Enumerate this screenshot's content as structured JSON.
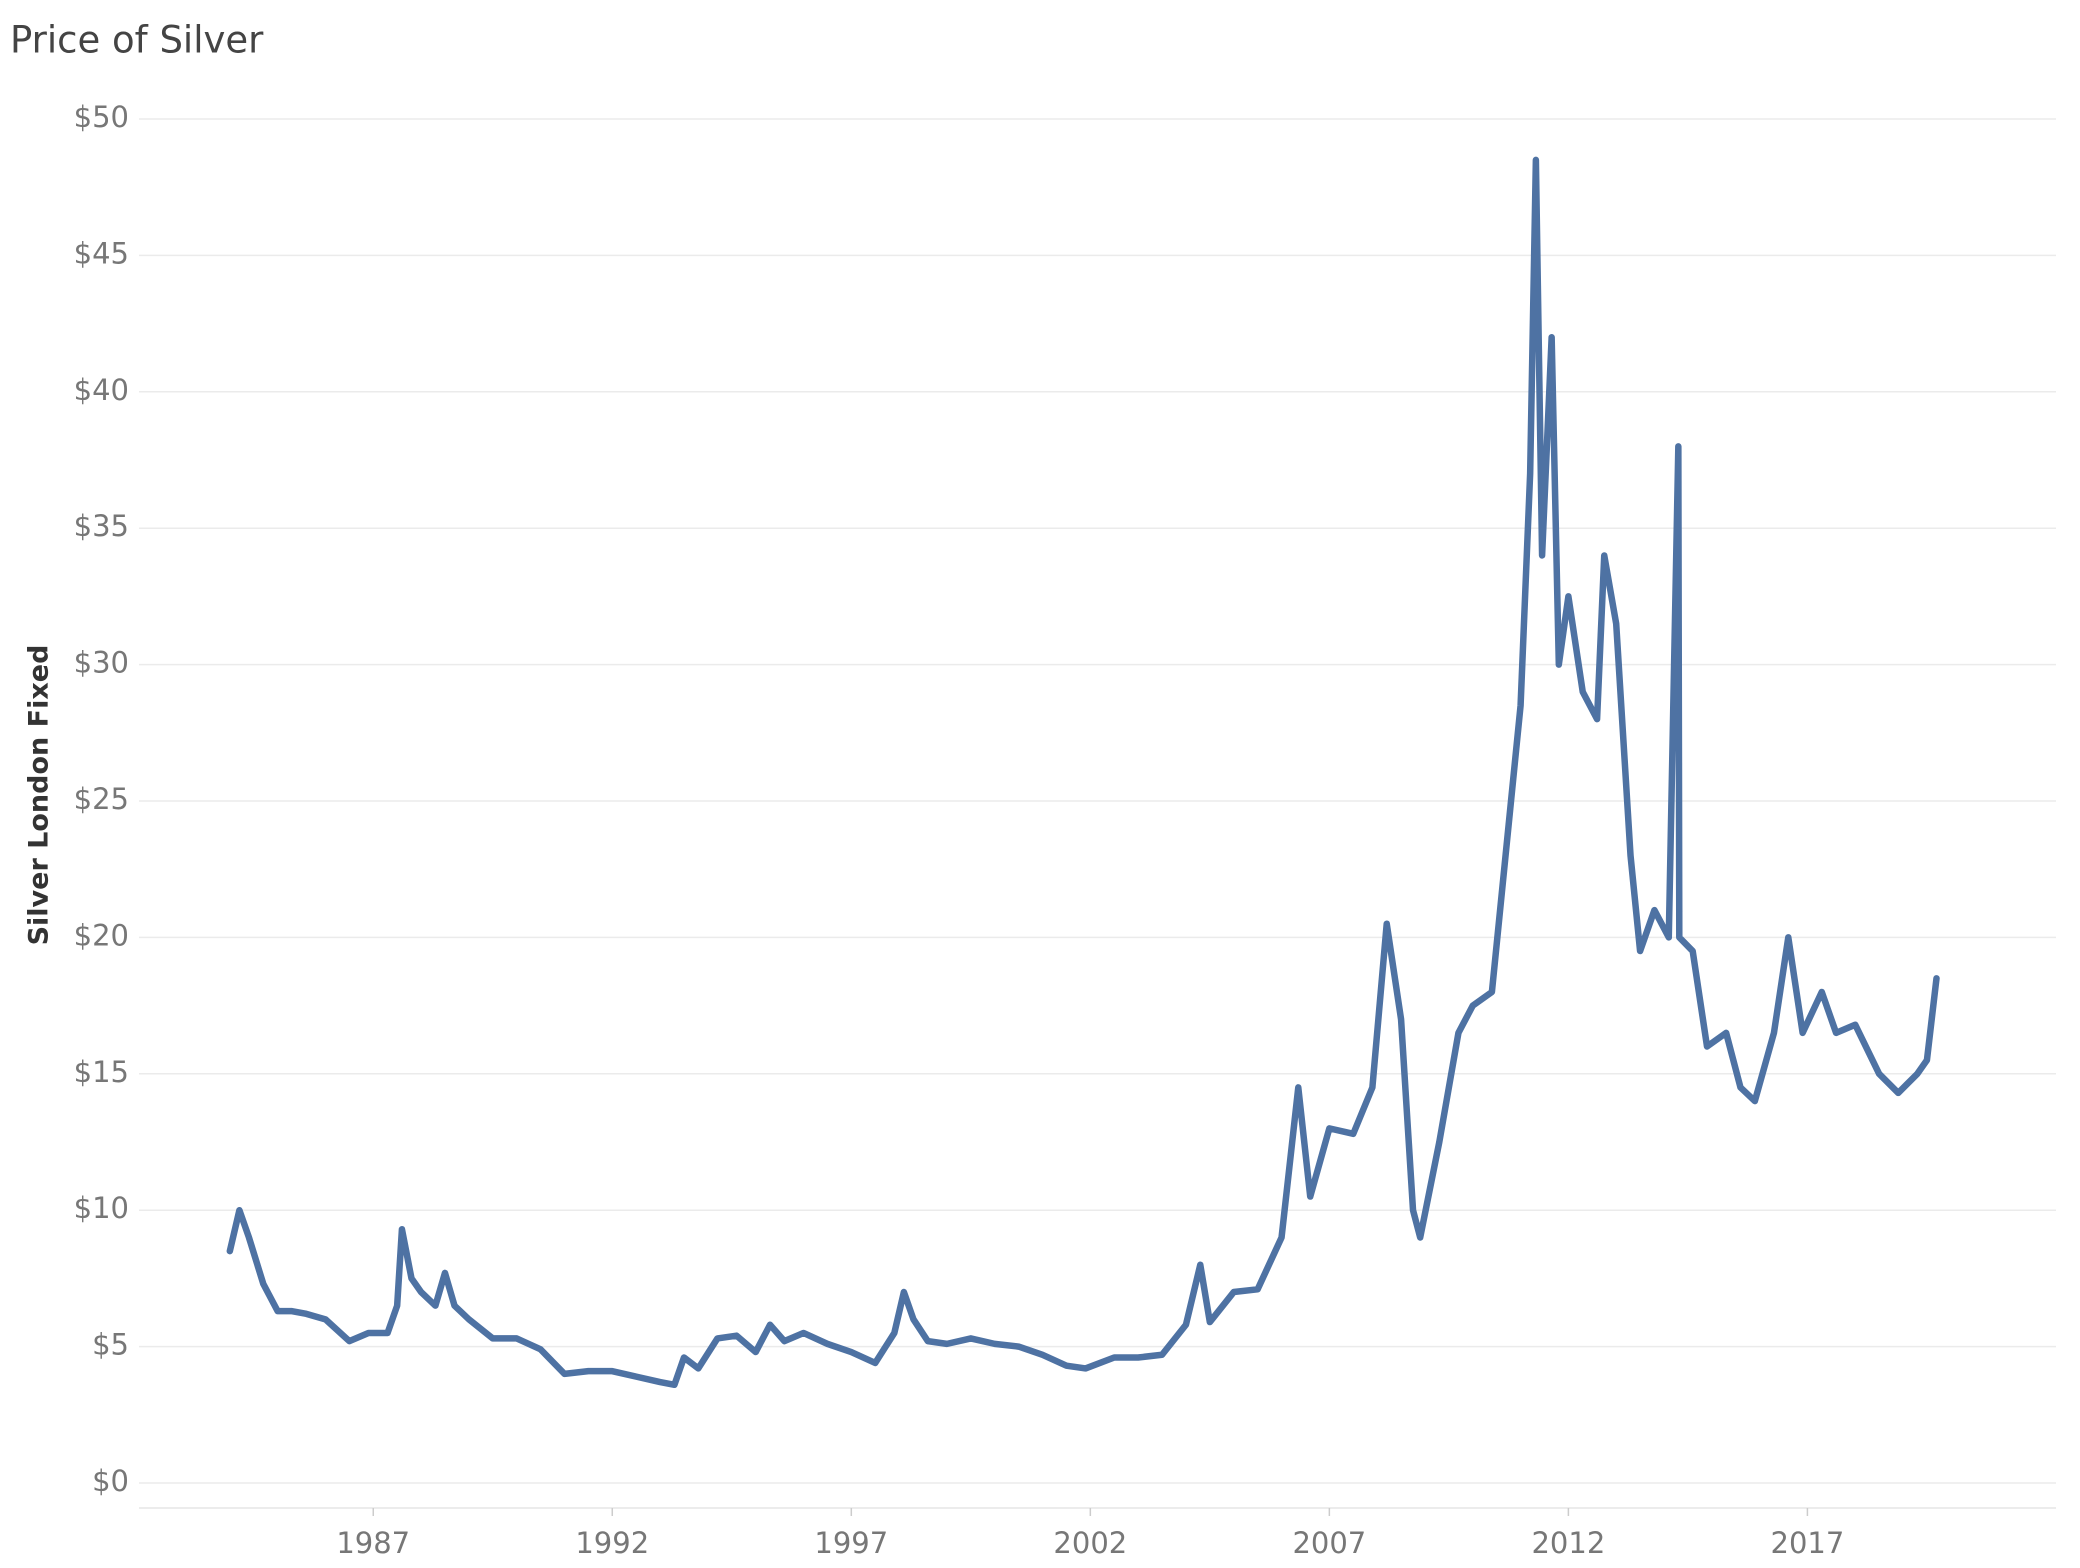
{
  "chart_data": {
    "type": "line",
    "title": "Price of Silver",
    "y_label": "Silver London Fixed",
    "x": [
      1984.0,
      1984.2,
      1984.4,
      1984.7,
      1985.0,
      1985.3,
      1985.6,
      1986.0,
      1986.5,
      1986.9,
      1987.3,
      1987.5,
      1987.6,
      1987.8,
      1988.0,
      1988.3,
      1988.5,
      1988.7,
      1989.0,
      1989.5,
      1990.0,
      1990.5,
      1991.0,
      1991.5,
      1992.0,
      1992.5,
      1993.0,
      1993.3,
      1993.5,
      1993.8,
      1994.2,
      1994.6,
      1995.0,
      1995.3,
      1995.6,
      1996.0,
      1996.5,
      1997.0,
      1997.5,
      1997.9,
      1998.1,
      1998.3,
      1998.6,
      1999.0,
      1999.5,
      2000.0,
      2000.5,
      2001.0,
      2001.5,
      2001.9,
      2002.5,
      2003.0,
      2003.5,
      2004.0,
      2004.3,
      2004.5,
      2005.0,
      2005.5,
      2006.0,
      2006.35,
      2006.6,
      2007.0,
      2007.5,
      2007.9,
      2008.2,
      2008.5,
      2008.75,
      2008.9,
      2009.3,
      2009.7,
      2010.0,
      2010.4,
      2010.8,
      2011.0,
      2011.2,
      2011.32,
      2011.45,
      2011.65,
      2011.8,
      2012.0,
      2012.3,
      2012.6,
      2012.75,
      2013.0,
      2013.3,
      2013.5,
      2013.8,
      2014.1,
      2014.3,
      2014.32,
      2014.6,
      2014.9,
      2015.3,
      2015.6,
      2015.9,
      2016.3,
      2016.6,
      2016.9,
      2017.3,
      2017.6,
      2018.0,
      2018.5,
      2018.9,
      2019.3,
      2019.5,
      2019.7
    ],
    "series": [
      {
        "name": "Silver London Fixed",
        "color": "#4e72a3",
        "values": [
          8.5,
          10.0,
          9.0,
          7.3,
          6.3,
          6.3,
          6.2,
          6.0,
          5.2,
          5.5,
          5.5,
          6.5,
          9.3,
          7.5,
          7.0,
          6.5,
          7.7,
          6.5,
          6.0,
          5.3,
          5.3,
          4.9,
          4.0,
          4.1,
          4.1,
          3.9,
          3.7,
          3.6,
          4.6,
          4.2,
          5.3,
          5.4,
          4.8,
          5.8,
          5.2,
          5.5,
          5.1,
          4.8,
          4.4,
          5.5,
          7.0,
          6.0,
          5.2,
          5.1,
          5.3,
          5.1,
          5.0,
          4.7,
          4.3,
          4.2,
          4.6,
          4.6,
          4.7,
          5.8,
          8.0,
          5.9,
          7.0,
          7.1,
          9.0,
          14.5,
          10.5,
          13.0,
          12.8,
          14.5,
          20.5,
          17.0,
          10.0,
          9.0,
          12.5,
          16.5,
          17.5,
          18.0,
          25.0,
          28.5,
          37.0,
          48.5,
          34.0,
          42.0,
          30.0,
          32.5,
          29.0,
          28.0,
          34.0,
          31.5,
          23.0,
          19.5,
          21.0,
          20.0,
          38.0,
          20.0,
          19.5,
          16.0,
          16.5,
          14.5,
          14.0,
          16.5,
          20.0,
          16.5,
          18.0,
          16.5,
          16.8,
          15.0,
          14.3,
          15.0,
          15.5,
          18.5
        ]
      }
    ],
    "xlim": [
      1982.1,
      2022.2
    ],
    "xticks": [
      1987,
      1992,
      1997,
      2002,
      2007,
      2012,
      2017
    ],
    "ylim": [
      0,
      50
    ],
    "yticks": [
      {
        "value": 0,
        "label": "$0"
      },
      {
        "value": 5,
        "label": "$5"
      },
      {
        "value": 10,
        "label": "$10"
      },
      {
        "value": 15,
        "label": "$15"
      },
      {
        "value": 20,
        "label": "$20"
      },
      {
        "value": 25,
        "label": "$25"
      },
      {
        "value": 30,
        "label": "$30"
      },
      {
        "value": 35,
        "label": "$35"
      },
      {
        "value": 40,
        "label": "$40"
      },
      {
        "value": 45,
        "label": "$45"
      },
      {
        "value": 50,
        "label": "$50"
      }
    ],
    "grid": true
  }
}
